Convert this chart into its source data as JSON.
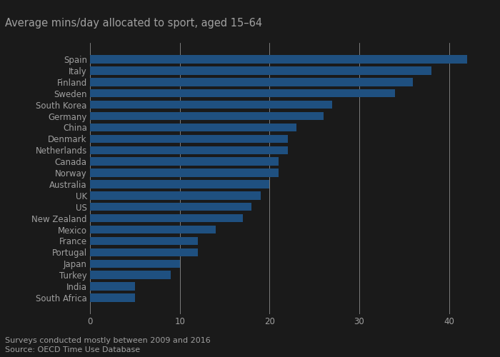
{
  "title": "Average mins/day allocated to sport, aged 15–64",
  "footnote1": "Surveys conducted mostly between 2009 and 2016",
  "footnote2": "Source: OECD Time Use Database",
  "categories": [
    "South Africa",
    "India",
    "Turkey",
    "Japan",
    "Portugal",
    "France",
    "Mexico",
    "New Zealand",
    "US",
    "UK",
    "Australia",
    "Norway",
    "Canada",
    "Netherlands",
    "Denmark",
    "China",
    "Germany",
    "South Korea",
    "Sweden",
    "Finland",
    "Italy",
    "Spain"
  ],
  "values": [
    5,
    5,
    9,
    10,
    12,
    12,
    14,
    17,
    18,
    19,
    20,
    21,
    21,
    22,
    22,
    23,
    26,
    27,
    34,
    36,
    38,
    42
  ],
  "bar_color": "#1f5080",
  "background_color": "#1a1a1a",
  "text_color": "#a0a0a0",
  "grid_color": "#ffffff",
  "xlim": [
    0,
    44
  ],
  "xticks": [
    0,
    10,
    20,
    30,
    40
  ],
  "title_fontsize": 10.5,
  "label_fontsize": 8.5,
  "tick_fontsize": 8.5,
  "footnote_fontsize": 8
}
